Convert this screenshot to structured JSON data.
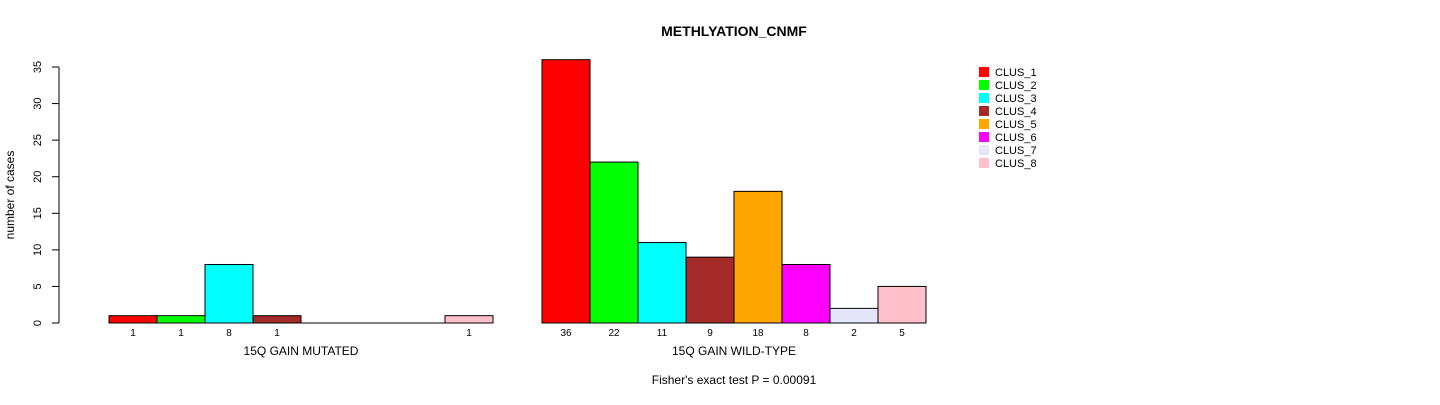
{
  "chart_data": {
    "type": "bar",
    "title": "METHLYATION_CNMF",
    "ylabel": "number of cases",
    "ylim": [
      0,
      35
    ],
    "yticks": [
      0,
      5,
      10,
      15,
      20,
      25,
      30,
      35
    ],
    "footer": "Fisher's exact test P = 0.00091",
    "legend_position": "top-right",
    "series_names": [
      "CLUS_1",
      "CLUS_2",
      "CLUS_3",
      "CLUS_4",
      "CLUS_5",
      "CLUS_6",
      "CLUS_7",
      "CLUS_8"
    ],
    "colors": [
      "#ff0000",
      "#00ff00",
      "#00ffff",
      "#a52a2a",
      "#ffa500",
      "#ff00ff",
      "#e6e6fa",
      "#ffc0cb"
    ],
    "groups": [
      {
        "name": "15Q GAIN MUTATED",
        "values": [
          1,
          1,
          8,
          1,
          0,
          0,
          0,
          1
        ]
      },
      {
        "name": "15Q GAIN WILD-TYPE",
        "values": [
          36,
          22,
          11,
          9,
          18,
          8,
          2,
          5
        ]
      }
    ]
  }
}
